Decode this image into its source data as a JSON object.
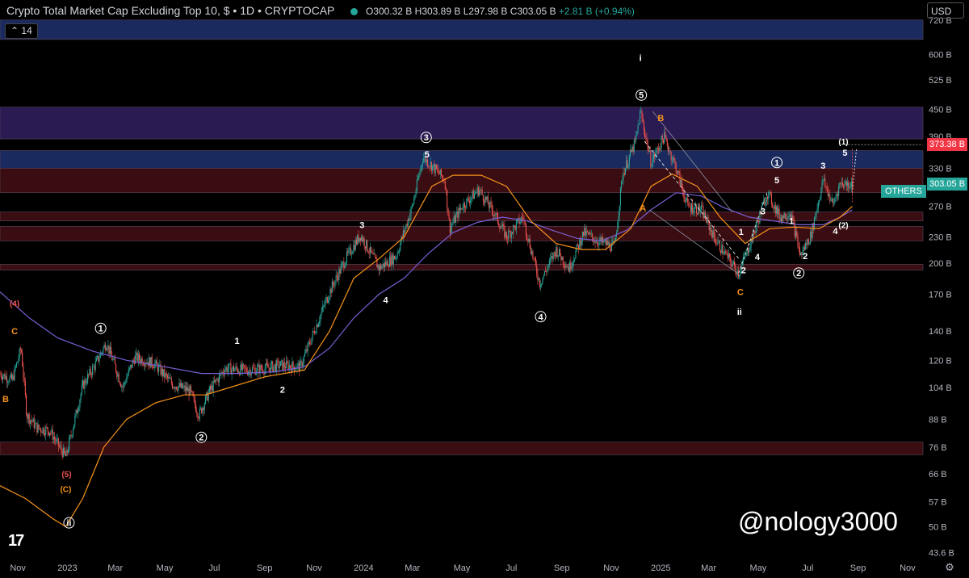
{
  "header": {
    "title": "Crypto Total Market Cap Excluding Top 10, $ • 1D • CRYPTOCAP",
    "open": "O300.32 B",
    "high": "H303.89 B",
    "low": "L297.98 B",
    "close": "C303.05 B",
    "change": "+2.81 B (+0.94%)",
    "currency_button": "USD",
    "ma_label": "14"
  },
  "watermark": "@nology3000",
  "logo_text": "17",
  "colors": {
    "up": "#26a69a",
    "down": "#ef5350",
    "ma_fast": "#f7931a",
    "ma_slow": "#7b5fd4",
    "zone_blue": "#1b2a5e",
    "zone_purple": "#2a1b52",
    "zone_red": "#3a0d12"
  },
  "chart_data": {
    "type": "candlestick",
    "title": "Crypto Total Market Cap Excluding Top 10, $ • 1D • CRYPTOCAP",
    "y_scale": "log",
    "ylim": [
      42.6,
      800
    ],
    "xlim": [
      "2022-10-10",
      "2025-11-20"
    ],
    "y_ticks": [
      "720 B",
      "600 B",
      "525 B",
      "450 B",
      "390 B",
      "330 B",
      "270 B",
      "230 B",
      "200 B",
      "170 B",
      "140 B",
      "120 B",
      "104 B",
      "88 B",
      "76 B",
      "66 B",
      "57 B",
      "50 B",
      "43.6 B"
    ],
    "x_ticks": [
      {
        "t": "2022-11-01",
        "label": "Nov"
      },
      {
        "t": "2023-01-01",
        "label": "2023"
      },
      {
        "t": "2023-03-01",
        "label": "Mar"
      },
      {
        "t": "2023-05-01",
        "label": "May"
      },
      {
        "t": "2023-07-01",
        "label": "Jul"
      },
      {
        "t": "2023-09-01",
        "label": "Sep"
      },
      {
        "t": "2023-11-01",
        "label": "Nov"
      },
      {
        "t": "2024-01-01",
        "label": "2024"
      },
      {
        "t": "2024-03-01",
        "label": "Mar"
      },
      {
        "t": "2024-05-01",
        "label": "May"
      },
      {
        "t": "2024-07-01",
        "label": "Jul"
      },
      {
        "t": "2024-09-01",
        "label": "Sep"
      },
      {
        "t": "2024-11-01",
        "label": "Nov"
      },
      {
        "t": "2025-01-01",
        "label": "2025"
      },
      {
        "t": "2025-03-01",
        "label": "Mar"
      },
      {
        "t": "2025-05-01",
        "label": "May"
      },
      {
        "t": "2025-07-01",
        "label": "Jul"
      },
      {
        "t": "2025-09-01",
        "label": "Sep"
      },
      {
        "t": "2025-11-01",
        "label": "Nov"
      }
    ],
    "price_path": [
      [
        "2022-10-10",
        112
      ],
      [
        "2022-10-25",
        108
      ],
      [
        "2022-11-05",
        128
      ],
      [
        "2022-11-12",
        90
      ],
      [
        "2022-11-25",
        84
      ],
      [
        "2022-12-10",
        83
      ],
      [
        "2022-12-30",
        72
      ],
      [
        "2023-01-20",
        105
      ],
      [
        "2023-02-05",
        118
      ],
      [
        "2023-02-18",
        132
      ],
      [
        "2023-03-10",
        104
      ],
      [
        "2023-03-25",
        122
      ],
      [
        "2023-04-18",
        118
      ],
      [
        "2023-05-10",
        106
      ],
      [
        "2023-06-01",
        102
      ],
      [
        "2023-06-12",
        90
      ],
      [
        "2023-06-25",
        102
      ],
      [
        "2023-07-14",
        115
      ],
      [
        "2023-08-10",
        114
      ],
      [
        "2023-09-01",
        115
      ],
      [
        "2023-09-20",
        117
      ],
      [
        "2023-10-15",
        116
      ],
      [
        "2023-11-01",
        140
      ],
      [
        "2023-11-20",
        172
      ],
      [
        "2023-12-10",
        205
      ],
      [
        "2023-12-28",
        232
      ],
      [
        "2024-01-20",
        195
      ],
      [
        "2024-02-10",
        208
      ],
      [
        "2024-03-01",
        270
      ],
      [
        "2024-03-14",
        350
      ],
      [
        "2024-03-28",
        330
      ],
      [
        "2024-04-10",
        310
      ],
      [
        "2024-04-16",
        240
      ],
      [
        "2024-05-01",
        270
      ],
      [
        "2024-05-22",
        295
      ],
      [
        "2024-06-10",
        260
      ],
      [
        "2024-06-25",
        230
      ],
      [
        "2024-07-15",
        255
      ],
      [
        "2024-08-05",
        180
      ],
      [
        "2024-08-25",
        215
      ],
      [
        "2024-09-10",
        195
      ],
      [
        "2024-09-28",
        235
      ],
      [
        "2024-10-15",
        225
      ],
      [
        "2024-11-05",
        218
      ],
      [
        "2024-11-15",
        320
      ],
      [
        "2024-12-01",
        380
      ],
      [
        "2024-12-07",
        445
      ],
      [
        "2024-12-20",
        340
      ],
      [
        "2025-01-05",
        390
      ],
      [
        "2025-01-20",
        330
      ],
      [
        "2025-02-03",
        270
      ],
      [
        "2025-02-20",
        265
      ],
      [
        "2025-03-10",
        225
      ],
      [
        "2025-04-07",
        190
      ],
      [
        "2025-04-25",
        232
      ],
      [
        "2025-05-12",
        290
      ],
      [
        "2025-05-28",
        255
      ],
      [
        "2025-06-10",
        262
      ],
      [
        "2025-06-22",
        208
      ],
      [
        "2025-07-05",
        232
      ],
      [
        "2025-07-20",
        310
      ],
      [
        "2025-08-01",
        272
      ],
      [
        "2025-08-10",
        305
      ],
      [
        "2025-08-25",
        303.05
      ]
    ],
    "ma_fast_path": [
      [
        "2022-10-10",
        62
      ],
      [
        "2022-11-10",
        58
      ],
      [
        "2022-12-15",
        52
      ],
      [
        "2022-12-30",
        50
      ],
      [
        "2023-01-20",
        58
      ],
      [
        "2023-02-15",
        76
      ],
      [
        "2023-03-15",
        88
      ],
      [
        "2023-04-20",
        96
      ],
      [
        "2023-05-25",
        100
      ],
      [
        "2023-06-20",
        100
      ],
      [
        "2023-07-20",
        104
      ],
      [
        "2023-09-01",
        110
      ],
      [
        "2023-10-20",
        114
      ],
      [
        "2023-11-20",
        140
      ],
      [
        "2023-12-20",
        185
      ],
      [
        "2024-01-20",
        205
      ],
      [
        "2024-02-20",
        230
      ],
      [
        "2024-03-25",
        300
      ],
      [
        "2024-04-20",
        318
      ],
      [
        "2024-05-25",
        318
      ],
      [
        "2024-06-25",
        300
      ],
      [
        "2024-07-25",
        250
      ],
      [
        "2024-08-25",
        222
      ],
      [
        "2024-09-25",
        215
      ],
      [
        "2024-10-25",
        215
      ],
      [
        "2024-11-25",
        240
      ],
      [
        "2024-12-20",
        300
      ],
      [
        "2025-01-15",
        320
      ],
      [
        "2025-02-15",
        300
      ],
      [
        "2025-03-15",
        255
      ],
      [
        "2025-04-15",
        222
      ],
      [
        "2025-05-15",
        240
      ],
      [
        "2025-06-15",
        242
      ],
      [
        "2025-07-15",
        240
      ],
      [
        "2025-08-10",
        255
      ],
      [
        "2025-08-25",
        270
      ]
    ],
    "ma_slow_path": [
      [
        "2022-10-10",
        172
      ],
      [
        "2022-11-15",
        150
      ],
      [
        "2022-12-20",
        135
      ],
      [
        "2023-02-01",
        126
      ],
      [
        "2023-03-15",
        120
      ],
      [
        "2023-05-01",
        116
      ],
      [
        "2023-06-15",
        112
      ],
      [
        "2023-08-01",
        112
      ],
      [
        "2023-09-15",
        113
      ],
      [
        "2023-10-20",
        116
      ],
      [
        "2023-11-20",
        128
      ],
      [
        "2023-12-20",
        150
      ],
      [
        "2024-01-20",
        170
      ],
      [
        "2024-02-20",
        185
      ],
      [
        "2024-03-20",
        210
      ],
      [
        "2024-04-20",
        235
      ],
      [
        "2024-05-20",
        248
      ],
      [
        "2024-06-20",
        255
      ],
      [
        "2024-07-20",
        250
      ],
      [
        "2024-08-20",
        238
      ],
      [
        "2024-09-20",
        228
      ],
      [
        "2024-10-20",
        225
      ],
      [
        "2024-11-20",
        238
      ],
      [
        "2024-12-20",
        265
      ],
      [
        "2025-01-20",
        290
      ],
      [
        "2025-02-20",
        285
      ],
      [
        "2025-03-20",
        268
      ],
      [
        "2025-04-20",
        255
      ],
      [
        "2025-05-20",
        250
      ],
      [
        "2025-06-20",
        245
      ],
      [
        "2025-07-20",
        245
      ],
      [
        "2025-08-10",
        255
      ],
      [
        "2025-08-25",
        265
      ]
    ],
    "zones": [
      {
        "from": 650,
        "to": 720,
        "color": "blue"
      },
      {
        "from": 385,
        "to": 455,
        "color": "purple"
      },
      {
        "from": 330,
        "to": 362,
        "color": "blue"
      },
      {
        "from": 290,
        "to": 330,
        "color": "red"
      },
      {
        "from": 250,
        "to": 262,
        "color": "red"
      },
      {
        "from": 225,
        "to": 243,
        "color": "red"
      },
      {
        "from": 193,
        "to": 199,
        "color": "red"
      },
      {
        "from": 73,
        "to": 78,
        "color": "red"
      }
    ],
    "price_labels": [
      {
        "name": "",
        "value": "373.38 B",
        "y": 373.38,
        "color": "#f23645"
      },
      {
        "name": "OTHERS",
        "value": "303.05 B",
        "y": 303.05,
        "color": "#26a69a"
      }
    ],
    "annotations": [
      {
        "text": "ii",
        "t": "2023-01-03",
        "y": 51,
        "circle": true,
        "color": "#ffffff"
      },
      {
        "text": "(C)",
        "t": "2022-12-30",
        "y": 61,
        "color": "#f7931a"
      },
      {
        "text": "(5)",
        "t": "2022-12-31",
        "y": 66,
        "color": "#ef5350"
      },
      {
        "text": "(4)",
        "t": "2022-10-28",
        "y": 162,
        "color": "#ef5350"
      },
      {
        "text": "C",
        "t": "2022-10-28",
        "y": 140,
        "color": "#f7931a"
      },
      {
        "text": "B",
        "t": "2022-10-17",
        "y": 98,
        "color": "#f7931a"
      },
      {
        "text": "1",
        "t": "2023-02-11",
        "y": 142,
        "circle": true,
        "color": "#ffffff"
      },
      {
        "text": "2",
        "t": "2023-06-15",
        "y": 80,
        "circle": true,
        "color": "#ffffff"
      },
      {
        "text": "1",
        "t": "2023-07-29",
        "y": 133,
        "color": "#ffffff"
      },
      {
        "text": "2",
        "t": "2023-09-23",
        "y": 103,
        "color": "#ffffff"
      },
      {
        "text": "3",
        "t": "2023-12-30",
        "y": 245,
        "color": "#ffffff"
      },
      {
        "text": "4",
        "t": "2024-01-28",
        "y": 165,
        "color": "#ffffff"
      },
      {
        "text": "3",
        "t": "2024-03-18",
        "y": 388,
        "circle": true,
        "color": "#ffffff"
      },
      {
        "text": "5",
        "t": "2024-03-19",
        "y": 355,
        "color": "#ffffff"
      },
      {
        "text": "4",
        "t": "2024-08-06",
        "y": 151,
        "circle": true,
        "color": "#ffffff"
      },
      {
        "text": "i",
        "t": "2024-12-07",
        "y": 590,
        "color": "#ffffff"
      },
      {
        "text": "5",
        "t": "2024-12-08",
        "y": 485,
        "circle": true,
        "color": "#ffffff"
      },
      {
        "text": "B",
        "t": "2025-01-01",
        "y": 430,
        "color": "#f7931a"
      },
      {
        "text": "A",
        "t": "2024-12-10",
        "y": 268,
        "color": "#f7931a"
      },
      {
        "text": "C",
        "t": "2025-04-09",
        "y": 172,
        "color": "#f7931a"
      },
      {
        "text": "ii",
        "t": "2025-04-08",
        "y": 155,
        "color": "#ffffff"
      },
      {
        "text": "2",
        "t": "2025-04-13",
        "y": 193,
        "color": "#ffffff"
      },
      {
        "text": "1",
        "t": "2025-04-10",
        "y": 236,
        "color": "#ffffff"
      },
      {
        "text": "4",
        "t": "2025-04-30",
        "y": 207,
        "color": "#ffffff"
      },
      {
        "text": "3",
        "t": "2025-05-07",
        "y": 263,
        "color": "#ffffff"
      },
      {
        "text": "1",
        "t": "2025-05-24",
        "y": 340,
        "circle": true,
        "color": "#ffffff"
      },
      {
        "text": "5",
        "t": "2025-05-24",
        "y": 310,
        "color": "#ffffff"
      },
      {
        "text": "1",
        "t": "2025-06-11",
        "y": 250,
        "color": "#ffffff"
      },
      {
        "text": "2",
        "t": "2025-06-20",
        "y": 190,
        "circle": true,
        "color": "#ffffff"
      },
      {
        "text": "2",
        "t": "2025-06-28",
        "y": 208,
        "color": "#ffffff"
      },
      {
        "text": "3",
        "t": "2025-07-20",
        "y": 335,
        "color": "#ffffff"
      },
      {
        "text": "4",
        "t": "2025-08-04",
        "y": 237,
        "color": "#ffffff"
      },
      {
        "text": "(2)",
        "t": "2025-08-14",
        "y": 245,
        "color": "#ffffff"
      },
      {
        "text": "(1)",
        "t": "2025-08-14",
        "y": 380,
        "color": "#ffffff"
      },
      {
        "text": "5",
        "t": "2025-08-16",
        "y": 358,
        "color": "#ffffff"
      }
    ],
    "legend": "none",
    "grid": false
  }
}
